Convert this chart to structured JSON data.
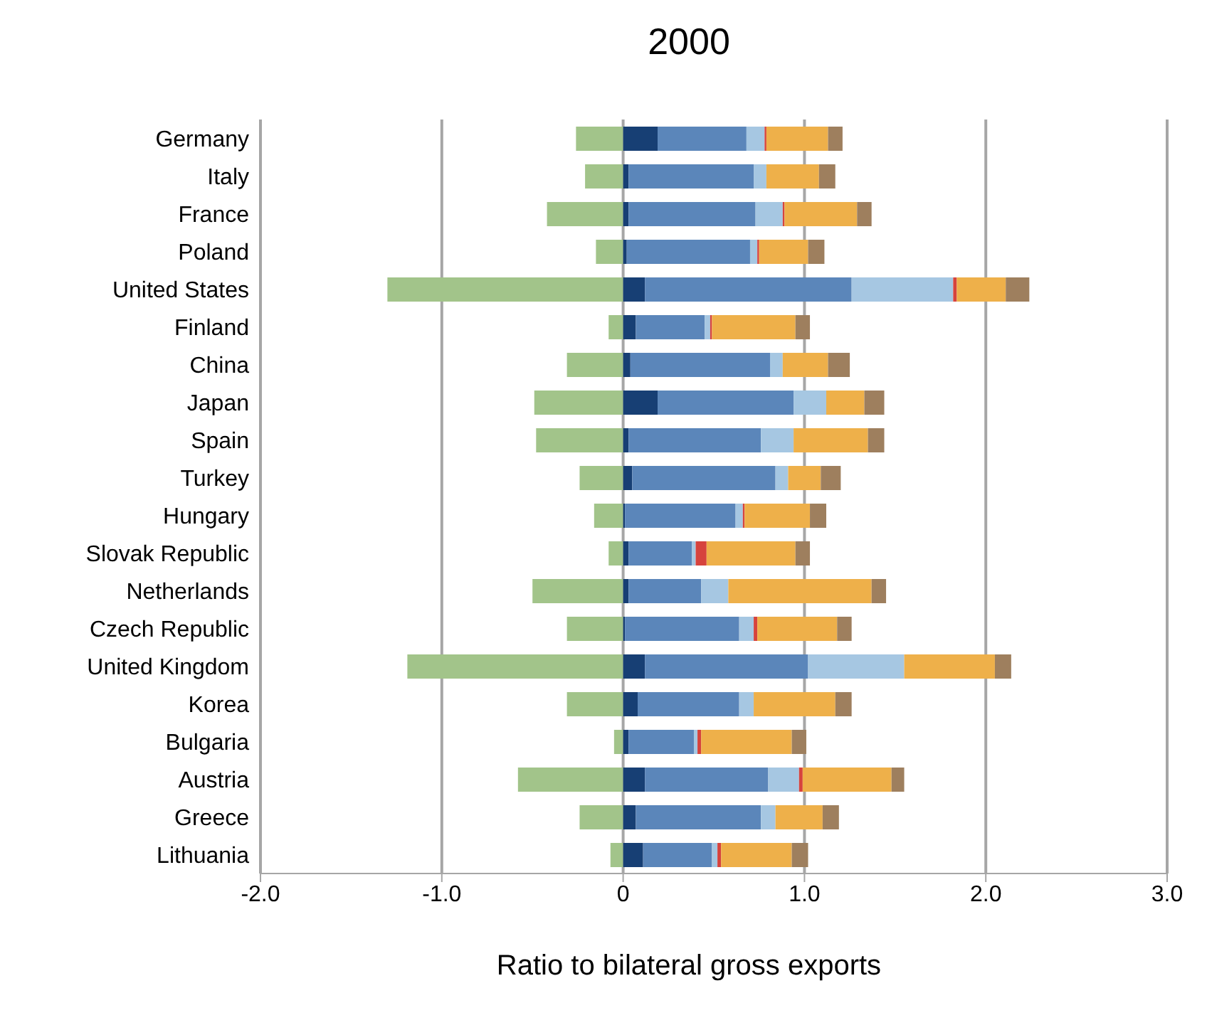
{
  "chart_data": {
    "type": "bar",
    "orientation": "horizontal",
    "stacked": true,
    "title": "2000",
    "xlabel": "Ratio to bilateral gross exports",
    "categories": [
      "Germany",
      "Italy",
      "France",
      "Poland",
      "United States",
      "Finland",
      "China",
      "Japan",
      "Spain",
      "Turkey",
      "Hungary",
      "Slovak Republic",
      "Netherlands",
      "Czech Republic",
      "United Kingdom",
      "Korea",
      "Bulgaria",
      "Austria",
      "Greece",
      "Lithuania"
    ],
    "series": [
      {
        "color": "#a2c48a",
        "values": [
          -0.26,
          -0.21,
          -0.42,
          -0.15,
          -1.3,
          -0.08,
          -0.31,
          -0.49,
          -0.48,
          -0.24,
          -0.16,
          -0.08,
          -0.5,
          -0.31,
          -1.19,
          -0.31,
          -0.05,
          -0.58,
          -0.24,
          -0.07
        ]
      },
      {
        "color": "#173f74",
        "values": [
          0.19,
          0.03,
          0.03,
          0.02,
          0.12,
          0.07,
          0.04,
          0.19,
          0.03,
          0.05,
          0.01,
          0.03,
          0.03,
          0.01,
          0.12,
          0.08,
          0.03,
          0.12,
          0.07,
          0.11
        ]
      },
      {
        "color": "#5b86ba",
        "values": [
          0.49,
          0.69,
          0.7,
          0.68,
          1.14,
          0.38,
          0.77,
          0.75,
          0.73,
          0.79,
          0.61,
          0.35,
          0.4,
          0.63,
          0.9,
          0.56,
          0.36,
          0.68,
          0.69,
          0.38
        ]
      },
      {
        "color": "#a6c7e2",
        "values": [
          0.1,
          0.07,
          0.15,
          0.04,
          0.56,
          0.03,
          0.07,
          0.18,
          0.18,
          0.07,
          0.04,
          0.02,
          0.15,
          0.08,
          0.53,
          0.08,
          0.02,
          0.17,
          0.08,
          0.03
        ]
      },
      {
        "color": "#d6433d",
        "values": [
          0.01,
          0,
          0.01,
          0.01,
          0.02,
          0.01,
          0,
          0,
          0,
          0,
          0.01,
          0.06,
          0,
          0.02,
          0,
          0,
          0.02,
          0.02,
          0,
          0.02
        ]
      },
      {
        "color": "#eeb04a",
        "values": [
          0.34,
          0.29,
          0.4,
          0.27,
          0.27,
          0.46,
          0.25,
          0.21,
          0.41,
          0.18,
          0.36,
          0.49,
          0.79,
          0.44,
          0.5,
          0.45,
          0.5,
          0.49,
          0.26,
          0.39
        ]
      },
      {
        "color": "#9e7f5e",
        "values": [
          0.08,
          0.09,
          0.08,
          0.09,
          0.13,
          0.08,
          0.12,
          0.11,
          0.09,
          0.11,
          0.09,
          0.08,
          0.08,
          0.08,
          0.09,
          0.09,
          0.08,
          0.07,
          0.09,
          0.09
        ]
      }
    ],
    "xlim": [
      -2,
      3
    ],
    "xticks": [
      {
        "value": -2,
        "label": "-2.0"
      },
      {
        "value": -1,
        "label": "-1.0"
      },
      {
        "value": 0,
        "label": "0"
      },
      {
        "value": 1,
        "label": "1.0"
      },
      {
        "value": 2,
        "label": "2.0"
      },
      {
        "value": 3,
        "label": "3.0"
      }
    ],
    "grid": "x",
    "legend": false
  }
}
